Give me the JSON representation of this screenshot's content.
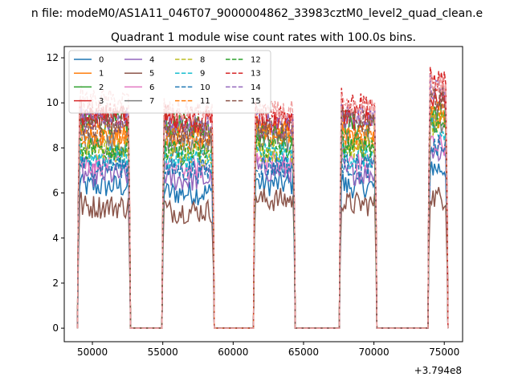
{
  "figure": {
    "suptitle": "n file: modeM0/AS1A11_046T07_9000004862_33983cztM0_level2_quad_clean.e",
    "offset_label": "+3.794e8"
  },
  "chart_data": {
    "type": "line",
    "title": "Quadrant 1 module wise count rates with 100.0s bins.",
    "xlabel": "",
    "ylabel": "",
    "xlim": [
      48000,
      76300
    ],
    "ylim": [
      -0.6,
      12.5
    ],
    "x_offset": 379400000,
    "xticks": [
      50000,
      55000,
      60000,
      65000,
      70000,
      75000
    ],
    "xtick_labels": [
      "50000",
      "55000",
      "60000",
      "65000",
      "70000",
      "75000"
    ],
    "yticks": [
      0,
      2,
      4,
      6,
      8,
      10,
      12
    ],
    "ytick_labels": [
      "0",
      "2",
      "4",
      "6",
      "8",
      "10",
      "12"
    ],
    "grid": false,
    "legend_position": "top-left",
    "segments": [
      {
        "start": 49000,
        "end": 52650
      },
      {
        "start": 55000,
        "end": 58600
      },
      {
        "start": 61500,
        "end": 64350
      },
      {
        "start": 67600,
        "end": 70150
      },
      {
        "start": 73900,
        "end": 75200
      }
    ],
    "gaps": [
      {
        "start": 52750,
        "end": 54900
      },
      {
        "start": 58700,
        "end": 61400
      },
      {
        "start": 64450,
        "end": 67500
      },
      {
        "start": 70250,
        "end": 73800
      }
    ],
    "series": [
      {
        "name": "0",
        "color": "#1f77b4",
        "dash": "solid",
        "segment_levels": [
          6.3,
          6.0,
          6.4,
          6.3,
          7.1
        ]
      },
      {
        "name": "1",
        "color": "#ff7f0e",
        "dash": "solid",
        "segment_levels": [
          8.5,
          8.6,
          8.7,
          8.4,
          9.3
        ]
      },
      {
        "name": "2",
        "color": "#2ca02c",
        "dash": "solid",
        "segment_levels": [
          9.1,
          9.0,
          8.6,
          9.0,
          9.5
        ]
      },
      {
        "name": "3",
        "color": "#d62728",
        "dash": "solid",
        "segment_levels": [
          9.4,
          9.2,
          9.2,
          9.3,
          10.1
        ]
      },
      {
        "name": "4",
        "color": "#9467bd",
        "dash": "solid",
        "segment_levels": [
          6.8,
          6.6,
          7.0,
          6.9,
          7.8
        ]
      },
      {
        "name": "5",
        "color": "#8c564b",
        "dash": "solid",
        "segment_levels": [
          5.4,
          5.2,
          5.7,
          5.5,
          5.8
        ]
      },
      {
        "name": "6",
        "color": "#e377c2",
        "dash": "solid",
        "segment_levels": [
          7.3,
          7.1,
          7.4,
          7.4,
          8.2
        ]
      },
      {
        "name": "7",
        "color": "#7f7f7f",
        "dash": "solid",
        "segment_levels": [
          8.2,
          8.1,
          8.3,
          8.3,
          9.2
        ]
      },
      {
        "name": "8",
        "color": "#bcbd22",
        "dash": "dashed",
        "segment_levels": [
          7.9,
          7.7,
          7.9,
          8.0,
          9.0
        ]
      },
      {
        "name": "9",
        "color": "#17becf",
        "dash": "dashed",
        "segment_levels": [
          7.6,
          7.5,
          7.7,
          7.6,
          8.6
        ]
      },
      {
        "name": "10",
        "color": "#1f77b4",
        "dash": "dashed",
        "segment_levels": [
          7.2,
          7.0,
          7.2,
          7.2,
          8.0
        ]
      },
      {
        "name": "11",
        "color": "#ff7f0e",
        "dash": "dashed",
        "segment_levels": [
          8.6,
          8.5,
          8.6,
          8.6,
          9.6
        ]
      },
      {
        "name": "12",
        "color": "#2ca02c",
        "dash": "dashed",
        "segment_levels": [
          8.0,
          7.8,
          8.0,
          8.1,
          9.1
        ]
      },
      {
        "name": "13",
        "color": "#d62728",
        "dash": "dashed",
        "segment_levels": [
          9.5,
          9.4,
          9.5,
          10.0,
          11.0
        ]
      },
      {
        "name": "14",
        "color": "#9467bd",
        "dash": "dashed",
        "segment_levels": [
          9.2,
          8.9,
          9.0,
          9.4,
          10.5
        ]
      },
      {
        "name": "15",
        "color": "#8c564b",
        "dash": "dashed",
        "segment_levels": [
          9.0,
          8.7,
          8.8,
          9.2,
          10.2
        ]
      }
    ],
    "highlight_series": {
      "color": "#f0a0a0",
      "segment_levels": [
        10.1,
        9.6,
        9.6,
        9.7,
        10.8
      ]
    }
  }
}
